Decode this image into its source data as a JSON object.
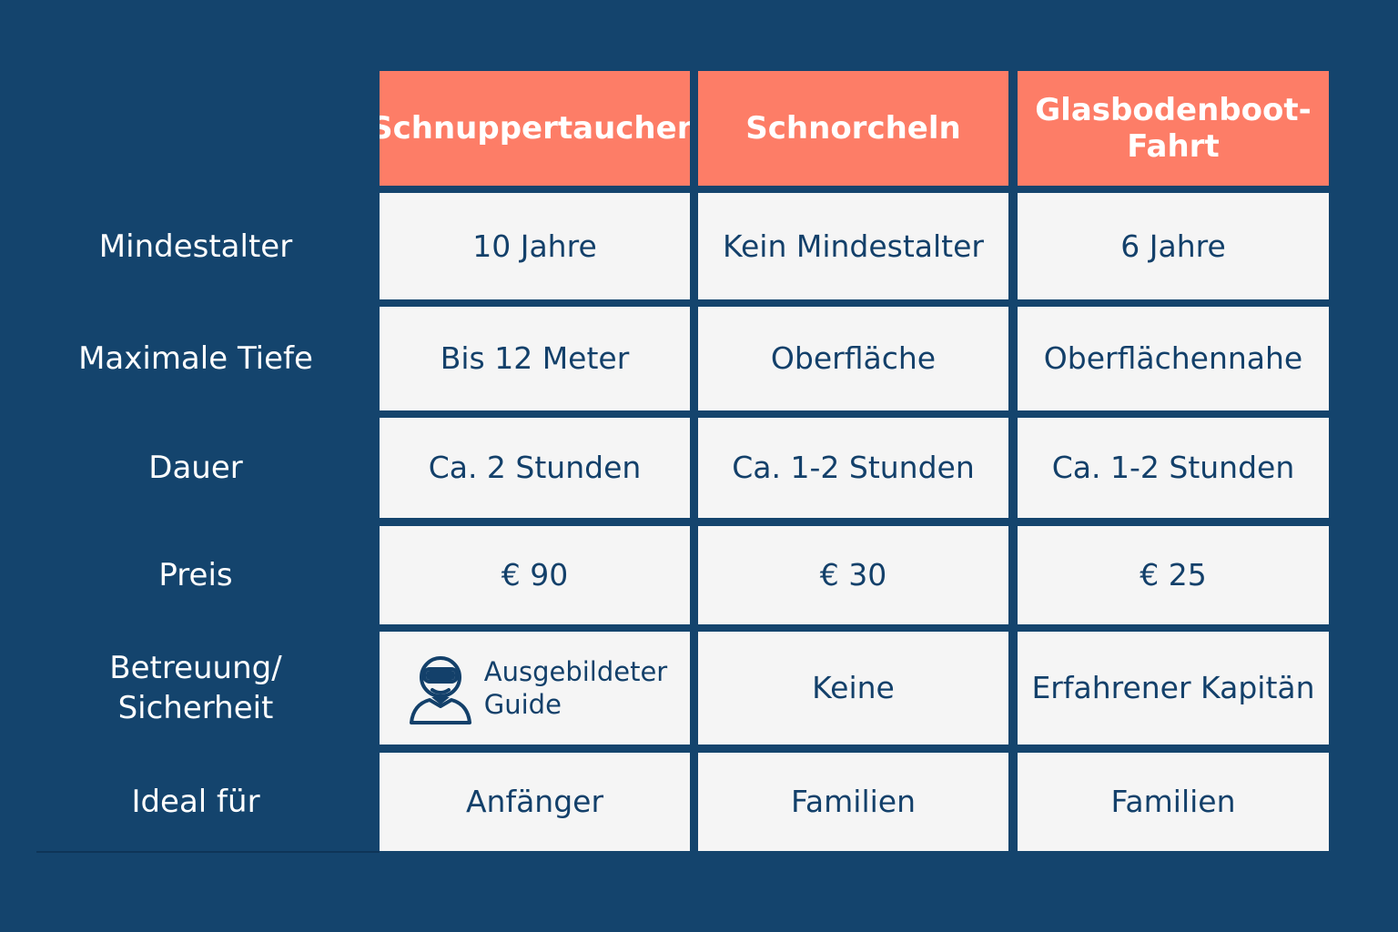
{
  "columns": [
    {
      "label": "Schnuppertauchen"
    },
    {
      "label": "Schnorcheln"
    },
    {
      "label": "Glasbodenboot-\nFahrt"
    }
  ],
  "rows": [
    {
      "label": "Mindestalter",
      "values": [
        "10 Jahre",
        "Kein Mindestalter",
        "6 Jahre"
      ]
    },
    {
      "label": "Maximale Tiefe",
      "values": [
        "Bis 12 Meter",
        "Oberfläche",
        "Oberflächennahe"
      ]
    },
    {
      "label": "Dauer",
      "values": [
        "Ca. 2 Stunden",
        "Ca. 1-2 Stunden",
        "Ca. 1-2 Stunden"
      ]
    },
    {
      "label": "Preis",
      "values": [
        "€ 90",
        "€ 30",
        "€ 25"
      ]
    },
    {
      "label": "Betreuung/\nSicherheit",
      "values": [
        "Ausgebildeter\nGuide",
        "Keine",
        "Erfahrener Kapitän"
      ],
      "icon": "diver-guide-icon"
    },
    {
      "label": "Ideal für",
      "values": [
        "Anfänger",
        "Familien",
        "Familien"
      ]
    }
  ],
  "colors": {
    "background": "#14446d",
    "header": "#fd7d67",
    "cell": "#f5f5f5",
    "text_dark": "#13406a"
  }
}
